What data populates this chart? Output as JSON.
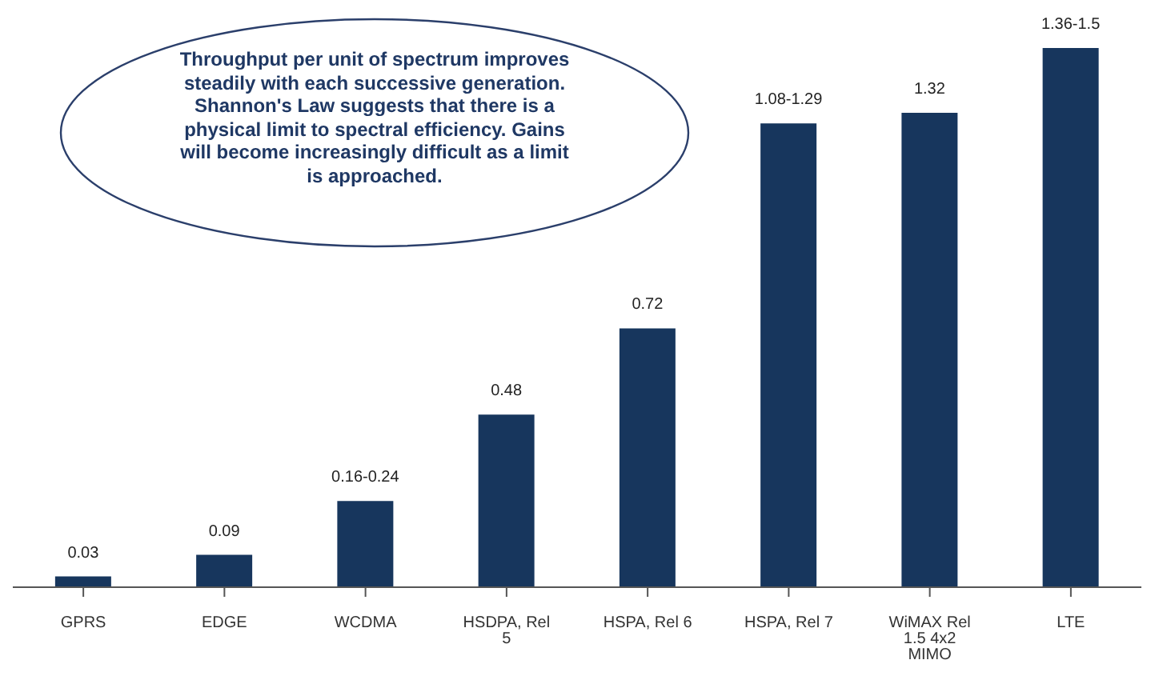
{
  "chart_data": {
    "type": "bar",
    "categories": [
      "GPRS",
      "EDGE",
      "WCDMA",
      "HSDPA, Rel 5",
      "HSPA, Rel 6",
      "HSPA, Rel 7",
      "WiMAX Rel 1.5 4x2 MIMO",
      "LTE"
    ],
    "values": [
      0.03,
      0.09,
      0.24,
      0.48,
      0.72,
      1.29,
      1.32,
      1.5
    ],
    "value_labels": [
      "0.03",
      "0.09",
      "0.16-0.24",
      "0.48",
      "0.72",
      "1.08-1.29",
      "1.32",
      "1.36-1.5"
    ],
    "color": "#17365d",
    "annotations": [
      "Throughput per unit of spectrum improves steadily with each successive generation. Shannon's Law suggests that there is a physical limit to spectral efficiency. Gains will become increasingly difficult as a limit is approached."
    ],
    "grid": false,
    "legend": false
  }
}
